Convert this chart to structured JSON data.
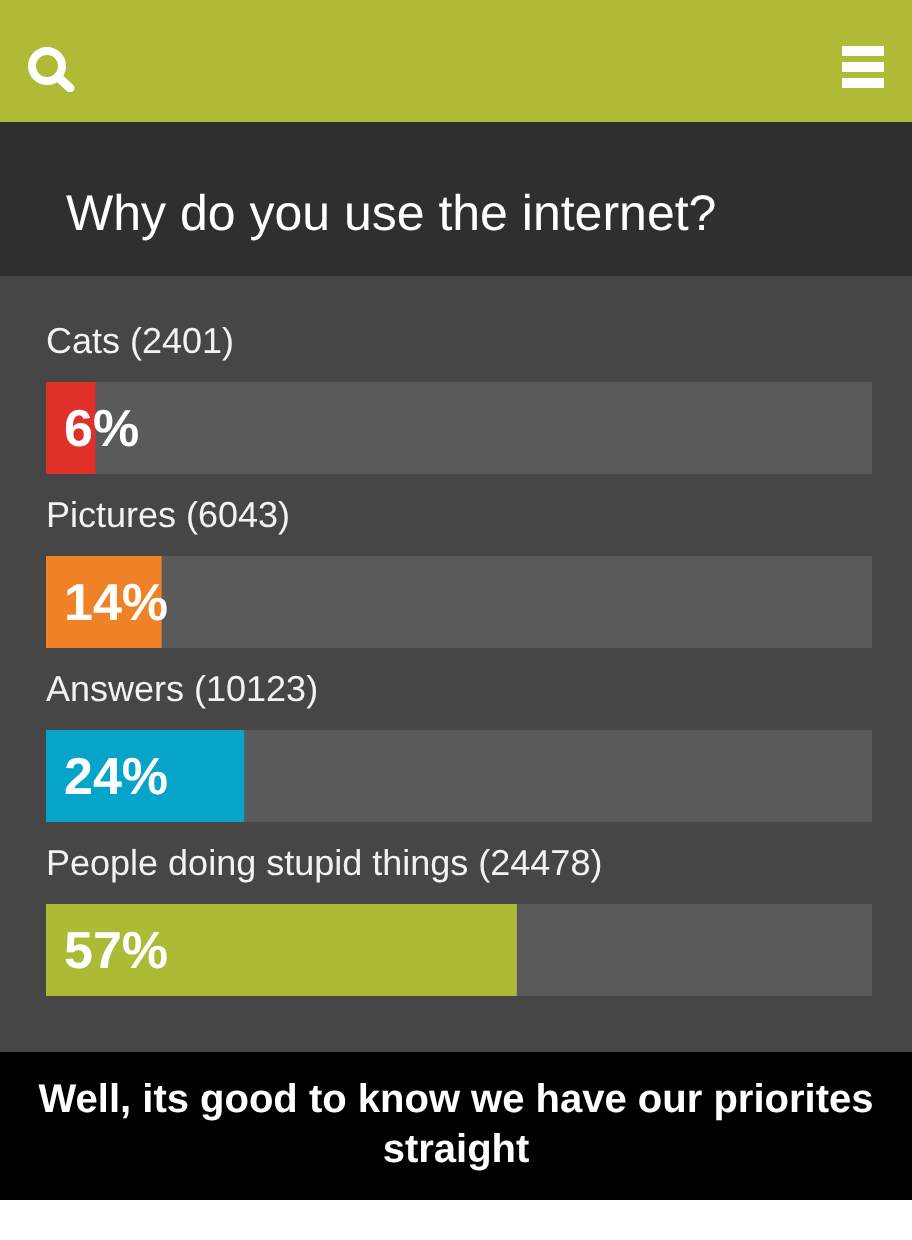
{
  "chart_data": {
    "type": "bar",
    "orientation": "horizontal",
    "title": "Why do you use the internet?",
    "categories": [
      "Cats (2401)",
      "Pictures (6043)",
      "Answers (10123)",
      "People doing stupid things (24478)"
    ],
    "values": [
      6,
      14,
      24,
      57
    ],
    "colors": [
      "#e0302a",
      "#ef8226",
      "#05a4c8",
      "#adba35"
    ],
    "value_labels": [
      "6%",
      "14%",
      "24%",
      "57%"
    ],
    "xlim": [
      0,
      100
    ],
    "tick_labels": "y",
    "annotations": [
      "Well, its good to know we have our priorites straight"
    ]
  }
}
